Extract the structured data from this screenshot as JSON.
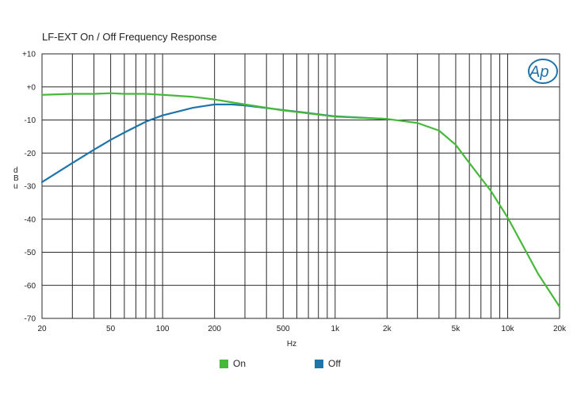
{
  "title": "LF-EXT On / Off Frequency Response",
  "logo_text": "Ap",
  "colors": {
    "on": "#46b93a",
    "off": "#1f74a8",
    "grid": "#2a2a2a",
    "logo": "#1f74a8"
  },
  "chart_data": {
    "type": "line",
    "title": "LF-EXT On / Off Frequency Response",
    "xlabel": "Hz",
    "ylabel": "dBu",
    "xscale": "log",
    "xlim": [
      20,
      20000
    ],
    "ylim": [
      -70,
      10
    ],
    "grid": true,
    "legend_position": "bottom-center",
    "x_ticks": [
      20,
      50,
      100,
      200,
      500,
      1000,
      2000,
      5000,
      10000,
      20000
    ],
    "x_tick_labels": [
      "20",
      "50",
      "100",
      "200",
      "500",
      "1k",
      "2k",
      "5k",
      "10k",
      "20k"
    ],
    "y_ticks": [
      10,
      0,
      -10,
      -20,
      -30,
      -40,
      -50,
      -60,
      -70
    ],
    "y_tick_labels": [
      "+10",
      "+0",
      "-10",
      "-20",
      "-30",
      "-40",
      "-50",
      "-60",
      "-70"
    ],
    "series": [
      {
        "name": "On",
        "color": "#46b93a",
        "x": [
          20,
          30,
          40,
          50,
          60,
          80,
          100,
          150,
          200,
          300,
          500,
          700,
          1000,
          2000,
          3000,
          4000,
          5000,
          6000,
          8000,
          10000,
          15000,
          20000
        ],
        "y": [
          -2.4,
          -2.1,
          -2.1,
          -1.9,
          -2.1,
          -2.1,
          -2.4,
          -3.0,
          -3.8,
          -5.3,
          -7.1,
          -8.0,
          -9.0,
          -9.7,
          -10.9,
          -13.2,
          -17.5,
          -23.0,
          -31.5,
          -39.5,
          -56.5,
          -66.5
        ]
      },
      {
        "name": "Off",
        "color": "#1f74a8",
        "x": [
          20,
          30,
          40,
          50,
          60,
          80,
          100,
          150,
          200,
          250,
          300,
          500,
          700,
          1000,
          2000
        ],
        "y": [
          -28.8,
          -23.0,
          -19.0,
          -16.0,
          -13.8,
          -10.5,
          -8.6,
          -6.3,
          -5.3,
          -5.3,
          -5.6,
          -7.0,
          -7.9,
          -8.9,
          -9.7
        ]
      }
    ]
  }
}
